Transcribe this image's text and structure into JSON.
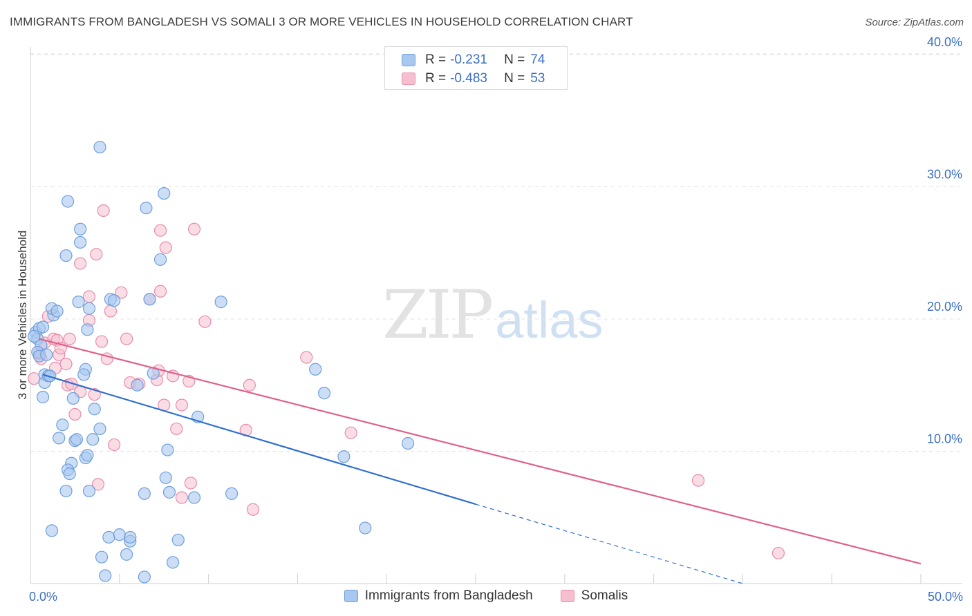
{
  "title": "IMMIGRANTS FROM BANGLADESH VS SOMALI 3 OR MORE VEHICLES IN HOUSEHOLD CORRELATION CHART",
  "source": "Source: ZipAtlas.com",
  "watermark": {
    "zip": "ZIP",
    "atlas": "atlas"
  },
  "legend": {
    "rows": [
      {
        "r_label": "R =",
        "r_value": "-0.231",
        "n_label": "N =",
        "n_value": "74"
      },
      {
        "r_label": "R =",
        "r_value": "-0.483",
        "n_label": "N =",
        "n_value": "53"
      }
    ]
  },
  "colors": {
    "series1_fill": "#a9c8ef",
    "series1_stroke": "#6f9fdc",
    "series1_line": "#2f6fd0",
    "series2_fill": "#f5bfd0",
    "series2_stroke": "#e98cab",
    "series2_line": "#e0608a",
    "grid": "#e3e3e3",
    "tick_text": "#3a6fc4"
  },
  "chart_data": {
    "type": "scatter",
    "title": "IMMIGRANTS FROM BANGLADESH VS SOMALI 3 OR MORE VEHICLES IN HOUSEHOLD CORRELATION CHART",
    "xlabel": "",
    "ylabel": "3 or more Vehicles in Household",
    "xlim": [
      0,
      50
    ],
    "ylim": [
      0,
      41
    ],
    "x_tick_labels": [
      "0.0%",
      "50.0%"
    ],
    "y_ticks": [
      10,
      20,
      30,
      40
    ],
    "y_tick_labels": [
      "10.0%",
      "20.0%",
      "30.0%",
      "40.0%"
    ],
    "grid": true,
    "series": [
      {
        "name": "Immigrants from Bangladesh",
        "r": -0.231,
        "n": 74,
        "trend": {
          "x0": 0.7,
          "y0": 15.8,
          "x1": 25.0,
          "y1": 6.0,
          "dash_to_x": 40.0,
          "dash_to_y": 0.0
        },
        "points": [
          [
            0.3,
            19.0
          ],
          [
            0.4,
            18.5
          ],
          [
            0.5,
            19.3
          ],
          [
            0.6,
            18.0
          ],
          [
            0.4,
            17.5
          ],
          [
            0.5,
            17.2
          ],
          [
            0.7,
            19.4
          ],
          [
            0.9,
            17.3
          ],
          [
            0.8,
            15.8
          ],
          [
            0.8,
            15.2
          ],
          [
            1.0,
            15.7
          ],
          [
            1.1,
            15.7
          ],
          [
            0.7,
            14.1
          ],
          [
            1.3,
            20.3
          ],
          [
            1.2,
            20.8
          ],
          [
            1.5,
            20.6
          ],
          [
            2.7,
            21.3
          ],
          [
            3.3,
            20.8
          ],
          [
            3.2,
            19.2
          ],
          [
            4.5,
            21.5
          ],
          [
            4.7,
            21.4
          ],
          [
            6.7,
            21.5
          ],
          [
            10.7,
            21.3
          ],
          [
            7.3,
            24.5
          ],
          [
            2.0,
            24.8
          ],
          [
            2.8,
            25.8
          ],
          [
            2.8,
            26.8
          ],
          [
            2.1,
            28.9
          ],
          [
            6.5,
            28.4
          ],
          [
            7.5,
            29.5
          ],
          [
            3.9,
            33.0
          ],
          [
            3.1,
            16.2
          ],
          [
            3.0,
            15.8
          ],
          [
            6.9,
            15.9
          ],
          [
            6.0,
            15.0
          ],
          [
            2.4,
            14.0
          ],
          [
            3.6,
            13.2
          ],
          [
            3.9,
            11.7
          ],
          [
            1.8,
            12.0
          ],
          [
            1.6,
            11.0
          ],
          [
            2.5,
            10.8
          ],
          [
            2.6,
            10.9
          ],
          [
            3.5,
            10.9
          ],
          [
            7.7,
            10.1
          ],
          [
            3.1,
            9.5
          ],
          [
            3.2,
            9.7
          ],
          [
            2.3,
            9.1
          ],
          [
            2.1,
            8.6
          ],
          [
            2.2,
            8.3
          ],
          [
            7.6,
            8.0
          ],
          [
            3.3,
            7.0
          ],
          [
            2.0,
            7.0
          ],
          [
            6.4,
            6.8
          ],
          [
            7.8,
            6.9
          ],
          [
            9.2,
            6.5
          ],
          [
            11.3,
            6.8
          ],
          [
            9.4,
            12.6
          ],
          [
            16.0,
            16.2
          ],
          [
            16.5,
            14.4
          ],
          [
            17.6,
            9.6
          ],
          [
            21.2,
            10.6
          ],
          [
            18.8,
            4.2
          ],
          [
            1.2,
            4.0
          ],
          [
            4.4,
            3.5
          ],
          [
            5.0,
            3.7
          ],
          [
            5.6,
            3.2
          ],
          [
            5.6,
            3.5
          ],
          [
            8.3,
            3.3
          ],
          [
            4.0,
            2.0
          ],
          [
            5.4,
            2.2
          ],
          [
            8.0,
            1.6
          ],
          [
            4.2,
            0.6
          ],
          [
            6.4,
            0.5
          ],
          [
            0.2,
            18.7
          ]
        ]
      },
      {
        "name": "Somalis",
        "r": -0.483,
        "n": 53,
        "trend": {
          "x0": 0.5,
          "y0": 18.5,
          "x1": 50.0,
          "y1": 1.5
        },
        "points": [
          [
            0.2,
            15.5
          ],
          [
            0.6,
            17.0
          ],
          [
            0.8,
            18.2
          ],
          [
            1.0,
            20.2
          ],
          [
            1.3,
            18.5
          ],
          [
            1.5,
            18.4
          ],
          [
            1.6,
            17.3
          ],
          [
            1.7,
            17.8
          ],
          [
            2.0,
            16.6
          ],
          [
            2.2,
            18.5
          ],
          [
            2.1,
            15.0
          ],
          [
            2.3,
            15.1
          ],
          [
            2.5,
            12.8
          ],
          [
            2.8,
            14.5
          ],
          [
            3.3,
            19.9
          ],
          [
            3.3,
            21.7
          ],
          [
            3.6,
            14.3
          ],
          [
            3.7,
            24.9
          ],
          [
            2.8,
            24.2
          ],
          [
            4.0,
            18.3
          ],
          [
            4.3,
            17.0
          ],
          [
            4.5,
            20.6
          ],
          [
            5.1,
            22.0
          ],
          [
            5.4,
            18.5
          ],
          [
            5.6,
            15.2
          ],
          [
            6.1,
            15.1
          ],
          [
            6.7,
            21.5
          ],
          [
            7.1,
            15.4
          ],
          [
            7.2,
            16.1
          ],
          [
            7.3,
            22.1
          ],
          [
            7.3,
            26.7
          ],
          [
            7.6,
            25.4
          ],
          [
            8.0,
            15.7
          ],
          [
            7.5,
            13.5
          ],
          [
            8.5,
            13.5
          ],
          [
            8.2,
            11.7
          ],
          [
            8.9,
            15.3
          ],
          [
            9.2,
            26.8
          ],
          [
            9.8,
            19.8
          ],
          [
            4.1,
            28.2
          ],
          [
            4.7,
            10.5
          ],
          [
            3.8,
            7.5
          ],
          [
            8.5,
            6.5
          ],
          [
            9.0,
            7.6
          ],
          [
            12.1,
            11.6
          ],
          [
            12.3,
            15.0
          ],
          [
            12.5,
            5.6
          ],
          [
            15.5,
            17.1
          ],
          [
            18.0,
            11.4
          ],
          [
            37.5,
            7.8
          ],
          [
            42.0,
            2.3
          ],
          [
            1.4,
            16.3
          ],
          [
            0.5,
            17.4
          ]
        ]
      }
    ]
  },
  "bottom_legend": [
    "Immigrants from Bangladesh",
    "Somalis"
  ]
}
